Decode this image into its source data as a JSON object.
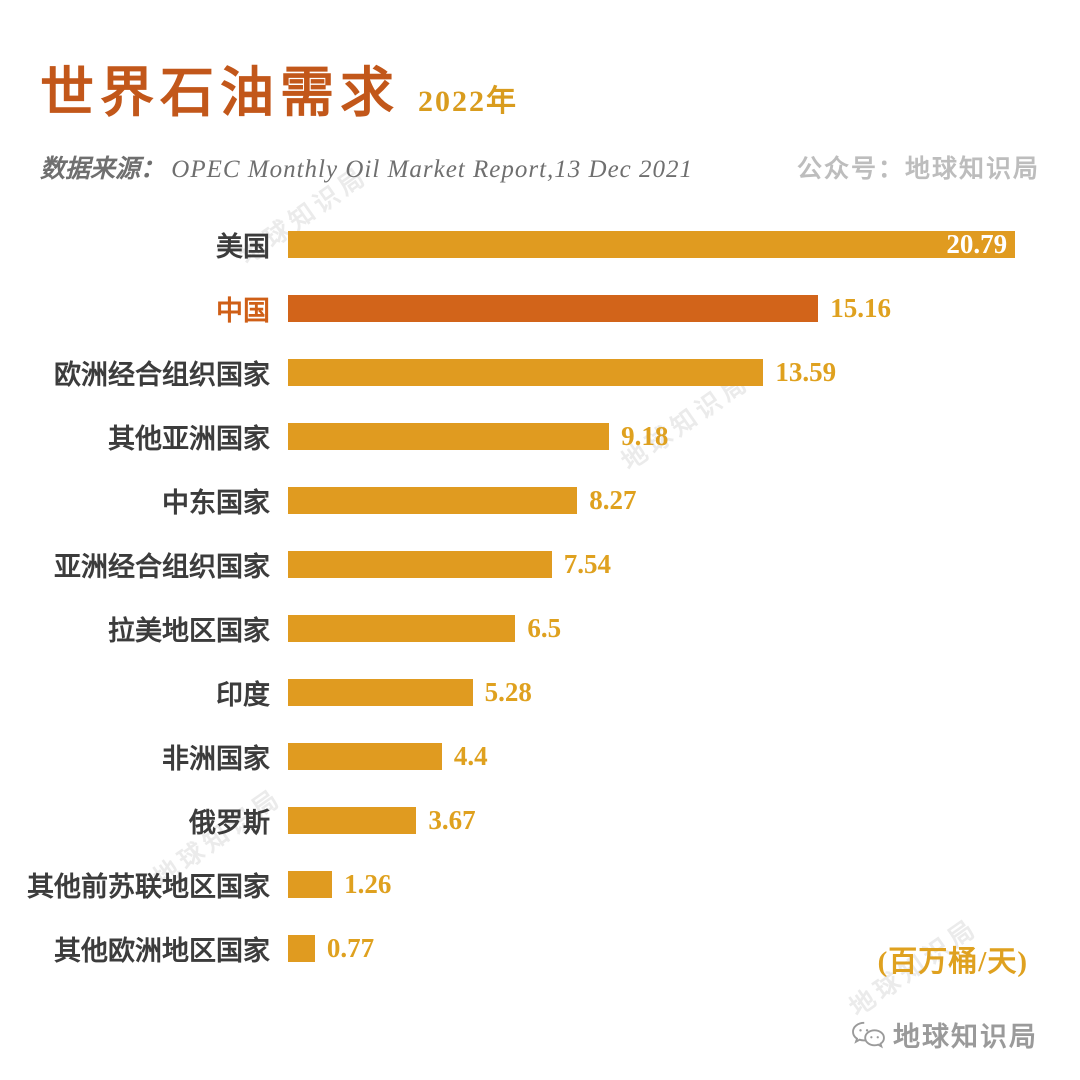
{
  "header": {
    "title": "世界石油需求",
    "year": "2022年",
    "source_label": "数据来源：",
    "source_text": "OPEC Monthly Oil Market Report,13 Dec 2021",
    "account_label": "公众号：地球知识局"
  },
  "chart_data": {
    "type": "bar",
    "orientation": "horizontal",
    "title": "世界石油需求 2022年",
    "xlabel": "",
    "ylabel": "",
    "unit_label": "(百万桶/天)",
    "xlim": [
      0,
      21.5
    ],
    "grid": false,
    "legend": false,
    "categories": [
      "美国",
      "中国",
      "欧洲经合组织国家",
      "其他亚洲国家",
      "中东国家",
      "亚洲经合组织国家",
      "拉美地区国家",
      "印度",
      "非洲国家",
      "俄罗斯",
      "其他前苏联地区国家",
      "其他欧洲地区国家"
    ],
    "values": [
      20.79,
      15.16,
      13.59,
      9.18,
      8.27,
      7.54,
      6.5,
      5.28,
      4.4,
      3.67,
      1.26,
      0.77
    ],
    "value_labels": [
      "20.79",
      "15.16",
      "13.59",
      "9.18",
      "8.27",
      "7.54",
      "6.5",
      "5.28",
      "4.4",
      "3.67",
      "1.26",
      "0.77"
    ],
    "highlight_index": 1,
    "inside_value_index": 0,
    "colors": {
      "bar": "#e09b20",
      "highlight_bar": "#d2641a",
      "value_label": "#dfa11f",
      "inside_value_label": "#ffffff",
      "category_label": "#3c3c3c",
      "highlight_category_label": "#cf5f17"
    }
  },
  "watermark": {
    "text": "地球知识局"
  },
  "footer": {
    "brand": "地球知识局"
  }
}
